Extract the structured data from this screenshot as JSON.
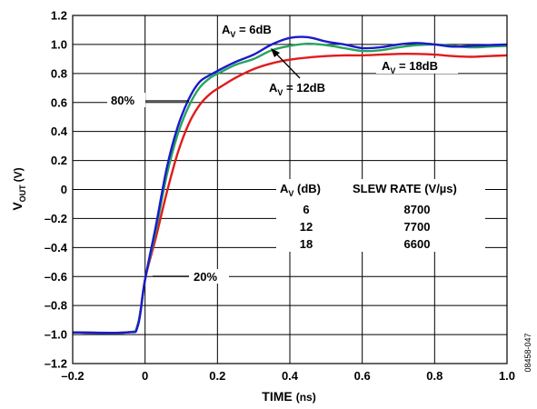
{
  "chart_data": {
    "type": "line",
    "xlabel": "TIME",
    "xlabel_unit": "(ns)",
    "ylabel_main": "V",
    "ylabel_sub": "OUT",
    "ylabel_unit": "(V)",
    "xlim": [
      -0.2,
      1.0
    ],
    "ylim": [
      -1.2,
      1.2
    ],
    "xticks": [
      -0.2,
      0,
      0.2,
      0.4,
      0.6,
      0.8,
      1.0
    ],
    "xtick_labels": [
      "–0.2",
      "0",
      "0.2",
      "0.4",
      "0.6",
      "0.8",
      "1.0"
    ],
    "yticks": [
      -1.2,
      -1.0,
      -0.8,
      -0.6,
      -0.4,
      -0.2,
      0,
      0.2,
      0.4,
      0.6,
      0.8,
      1.0,
      1.2
    ],
    "ytick_labels": [
      "–1.2",
      "–1.0",
      "–0.8",
      "–0.6",
      "–0.4",
      "–0.2",
      "0",
      "0.2",
      "0.4",
      "0.6",
      "0.8",
      "1.0",
      "1.2"
    ],
    "grid": true,
    "series": [
      {
        "name": "AV = 6dB",
        "color": "#1a1acc",
        "points": [
          [
            -0.2,
            -0.985
          ],
          [
            -0.05,
            -0.985
          ],
          [
            -0.02,
            -0.94
          ],
          [
            0.0,
            -0.62
          ],
          [
            0.03,
            -0.25
          ],
          [
            0.06,
            0.15
          ],
          [
            0.09,
            0.43
          ],
          [
            0.12,
            0.62
          ],
          [
            0.15,
            0.74
          ],
          [
            0.18,
            0.79
          ],
          [
            0.21,
            0.83
          ],
          [
            0.25,
            0.88
          ],
          [
            0.3,
            0.93
          ],
          [
            0.35,
            1.0
          ],
          [
            0.4,
            1.045
          ],
          [
            0.45,
            1.05
          ],
          [
            0.5,
            1.02
          ],
          [
            0.55,
            1.0
          ],
          [
            0.6,
            0.975
          ],
          [
            0.65,
            0.98
          ],
          [
            0.7,
            1.0
          ],
          [
            0.75,
            1.01
          ],
          [
            0.8,
            1.0
          ],
          [
            0.85,
            0.985
          ],
          [
            0.9,
            0.99
          ],
          [
            0.95,
            0.995
          ],
          [
            1.0,
            1.0
          ]
        ]
      },
      {
        "name": "AV = 12dB",
        "color": "#27a35f",
        "points": [
          [
            -0.2,
            -0.985
          ],
          [
            -0.05,
            -0.985
          ],
          [
            -0.02,
            -0.93
          ],
          [
            0.0,
            -0.62
          ],
          [
            0.03,
            -0.28
          ],
          [
            0.06,
            0.1
          ],
          [
            0.09,
            0.38
          ],
          [
            0.12,
            0.57
          ],
          [
            0.15,
            0.7
          ],
          [
            0.18,
            0.77
          ],
          [
            0.21,
            0.81
          ],
          [
            0.25,
            0.86
          ],
          [
            0.3,
            0.9
          ],
          [
            0.35,
            0.96
          ],
          [
            0.4,
            0.99
          ],
          [
            0.45,
            1.005
          ],
          [
            0.5,
            0.995
          ],
          [
            0.55,
            0.975
          ],
          [
            0.6,
            0.955
          ],
          [
            0.65,
            0.96
          ],
          [
            0.7,
            0.98
          ],
          [
            0.75,
            0.995
          ],
          [
            0.8,
            1.0
          ],
          [
            0.85,
            0.99
          ],
          [
            0.9,
            0.98
          ],
          [
            0.95,
            0.985
          ],
          [
            1.0,
            0.99
          ]
        ]
      },
      {
        "name": "AV = 18dB",
        "color": "#e11b1b",
        "points": [
          [
            -0.2,
            -0.985
          ],
          [
            -0.05,
            -0.985
          ],
          [
            -0.02,
            -0.93
          ],
          [
            0.0,
            -0.62
          ],
          [
            0.03,
            -0.33
          ],
          [
            0.06,
            -0.02
          ],
          [
            0.09,
            0.25
          ],
          [
            0.12,
            0.45
          ],
          [
            0.15,
            0.58
          ],
          [
            0.18,
            0.66
          ],
          [
            0.21,
            0.71
          ],
          [
            0.25,
            0.77
          ],
          [
            0.3,
            0.83
          ],
          [
            0.35,
            0.87
          ],
          [
            0.4,
            0.895
          ],
          [
            0.45,
            0.91
          ],
          [
            0.5,
            0.92
          ],
          [
            0.55,
            0.925
          ],
          [
            0.6,
            0.925
          ],
          [
            0.65,
            0.93
          ],
          [
            0.7,
            0.935
          ],
          [
            0.75,
            0.935
          ],
          [
            0.8,
            0.93
          ],
          [
            0.85,
            0.92
          ],
          [
            0.9,
            0.915
          ],
          [
            0.95,
            0.92
          ],
          [
            1.0,
            0.925
          ]
        ]
      }
    ],
    "annotations": {
      "av6": {
        "main": "A",
        "sub": "V",
        "rest": " = 6dB"
      },
      "av12": {
        "main": "A",
        "sub": "V",
        "rest": " = 12dB"
      },
      "av18": {
        "main": "A",
        "sub": "V",
        "rest": " = 18dB"
      },
      "pct80": "80%",
      "pct20": "20%"
    },
    "table": {
      "header_av_main": "A",
      "header_av_sub": "V",
      "header_av_rest": " (dB)",
      "header_slew": "SLEW RATE (V/µs)",
      "rows": [
        {
          "av": "6",
          "slew": "8700"
        },
        {
          "av": "12",
          "slew": "7700"
        },
        {
          "av": "18",
          "slew": "6600"
        }
      ]
    }
  },
  "figure_id": "08458-047"
}
